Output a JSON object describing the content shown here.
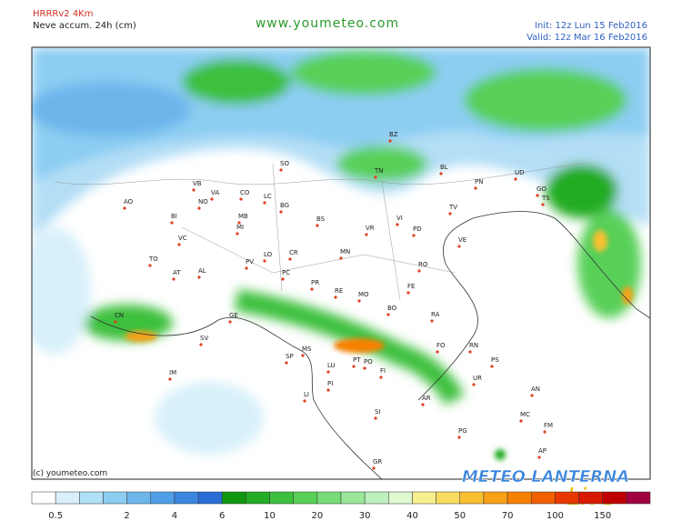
{
  "header": {
    "model": "HRRRv2 4Km",
    "field": "Neve accum. 24h (cm)",
    "site": "www.youmeteo.com",
    "init": "Init: 12z Lun  15 Feb2016",
    "valid": "Valid: 12z Mar  16 Feb2016"
  },
  "copyright": "(c) youmeteo.com",
  "logo": {
    "main": "METEO LANTERNA",
    "script": "Live"
  },
  "provinces": [
    "AO",
    "BI",
    "VB",
    "VA",
    "CO",
    "LC",
    "SO",
    "NO",
    "MB",
    "MI",
    "BG",
    "BS",
    "VC",
    "TO",
    "AT",
    "AL",
    "CN",
    "PV",
    "LO",
    "CR",
    "PC",
    "GE",
    "SV",
    "IM",
    "SP",
    "MS",
    "LU",
    "PT",
    "PO",
    "FI",
    "PI",
    "LI",
    "SI",
    "AR",
    "GR",
    "PG",
    "PR",
    "RE",
    "MO",
    "BO",
    "FE",
    "RA",
    "FO",
    "RN",
    "PS",
    "UR",
    "AN",
    "MC",
    "FM",
    "AP",
    "TN",
    "BZ",
    "BL",
    "UD",
    "PN",
    "GO",
    "TS",
    "TV",
    "VI",
    "VR",
    "PD",
    "VE",
    "RO",
    "MN"
  ],
  "scale": {
    "colors": [
      "#ffffff",
      "#d8f0fa",
      "#b0e0f6",
      "#8ccdf2",
      "#6cb6ec",
      "#4e9fe6",
      "#3a86de",
      "#2a6ed6",
      "#109810",
      "#24ac24",
      "#3cc03c",
      "#58d058",
      "#78dc78",
      "#9ae69a",
      "#bef0be",
      "#e0f8d0",
      "#f8f090",
      "#f8dc60",
      "#f8c030",
      "#f8a018",
      "#f88000",
      "#f06000",
      "#e83800",
      "#d81800",
      "#c00000",
      "#a00040"
    ],
    "labels": [
      "0.5",
      "2",
      "4",
      "6",
      "10",
      "20",
      "30",
      "40",
      "50",
      "70",
      "100",
      "150"
    ]
  }
}
